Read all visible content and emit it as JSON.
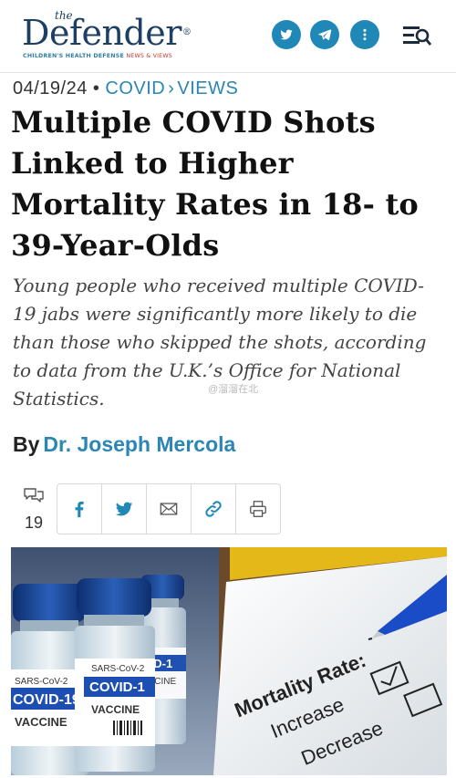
{
  "header": {
    "logo": {
      "the": "the",
      "main": "Defender",
      "registered": "®",
      "sub_blue": "CHILDREN'S HEALTH DEFENSE",
      "sub_red": "NEWS & VIEWS"
    },
    "icons": [
      "twitter-icon",
      "telegram-icon",
      "more-icon",
      "search-menu-icon"
    ],
    "colors": {
      "brand": "#1d3f63",
      "button": "#1f88b6",
      "link": "#2a86b5"
    }
  },
  "article": {
    "date": "04/19/24",
    "separator": "•",
    "category": "COVID",
    "category_sep": "›",
    "subcategory": "VIEWS",
    "title": "Multiple COVID Shots Linked to Higher Mortality Rates in 18- to 39-Year-Olds",
    "subtitle": "Young people who received multiple COVID-19 jabs were significantly more likely to die than those who skipped the shots, according to data from the U.K.’s Office for National Statistics.",
    "by": "By",
    "author": "Dr. Joseph Mercola",
    "comment_count": "19"
  },
  "share": {
    "icons": [
      "facebook-icon",
      "twitter-icon",
      "email-icon",
      "link-icon",
      "print-icon"
    ]
  },
  "watermark": "@溜溜在北",
  "image": {
    "vial_label_1": "SARS-CoV-2",
    "vial_brand_1": "COVID-19",
    "vial_type_1": "VACCINE",
    "vial_label_2": "SARS-CoV-2",
    "vial_brand_2": "COVID-1",
    "vial_type_2": "VACCINE",
    "vial_brand_3": "VID-1",
    "vial_type_3": "CCINE",
    "form_title": "Mortality Rate:",
    "option_1": "Increase",
    "option_2": "Decrease"
  }
}
